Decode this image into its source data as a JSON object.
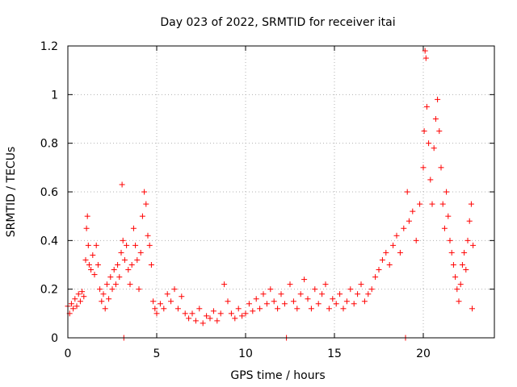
{
  "chart_data": {
    "type": "scatter",
    "title": "Day 023 of 2022, SRMTID for receiver itai",
    "xlabel": "GPS time / hours",
    "ylabel": "SRMTID / TECUs",
    "xlim": [
      0,
      24.0
    ],
    "ylim": [
      0,
      1.2
    ],
    "xticks": [
      0,
      5,
      10,
      15,
      20
    ],
    "xtick_labels": [
      "0",
      "5",
      "10",
      "15",
      "20"
    ],
    "yticks": [
      0,
      0.2,
      0.4,
      0.6,
      0.8,
      1.0,
      1.2
    ],
    "ytick_labels": [
      "0",
      "0.2",
      "0.4",
      "0.6",
      "0.8",
      "1",
      "1.2"
    ],
    "grid": true,
    "marker": "+",
    "color": "#ff0000",
    "series": [
      {
        "name": "SRMTID",
        "points": [
          [
            0.0,
            0.13
          ],
          [
            0.1,
            0.1
          ],
          [
            0.2,
            0.14
          ],
          [
            0.3,
            0.12
          ],
          [
            0.4,
            0.16
          ],
          [
            0.5,
            0.13
          ],
          [
            0.6,
            0.18
          ],
          [
            0.7,
            0.15
          ],
          [
            0.8,
            0.19
          ],
          [
            0.9,
            0.17
          ],
          [
            1.0,
            0.32
          ],
          [
            1.05,
            0.45
          ],
          [
            1.1,
            0.5
          ],
          [
            1.15,
            0.38
          ],
          [
            1.2,
            0.3
          ],
          [
            1.3,
            0.28
          ],
          [
            1.4,
            0.34
          ],
          [
            1.5,
            0.26
          ],
          [
            1.6,
            0.38
          ],
          [
            1.7,
            0.3
          ],
          [
            1.8,
            0.2
          ],
          [
            1.9,
            0.15
          ],
          [
            2.0,
            0.18
          ],
          [
            2.1,
            0.12
          ],
          [
            2.2,
            0.22
          ],
          [
            2.3,
            0.16
          ],
          [
            2.4,
            0.25
          ],
          [
            2.5,
            0.2
          ],
          [
            2.6,
            0.28
          ],
          [
            2.7,
            0.22
          ],
          [
            2.8,
            0.3
          ],
          [
            2.9,
            0.25
          ],
          [
            3.0,
            0.35
          ],
          [
            3.05,
            0.63
          ],
          [
            3.1,
            0.4
          ],
          [
            3.15,
            0.0
          ],
          [
            3.2,
            0.32
          ],
          [
            3.3,
            0.38
          ],
          [
            3.4,
            0.28
          ],
          [
            3.5,
            0.22
          ],
          [
            3.6,
            0.3
          ],
          [
            3.7,
            0.45
          ],
          [
            3.8,
            0.38
          ],
          [
            3.9,
            0.32
          ],
          [
            4.0,
            0.2
          ],
          [
            4.1,
            0.35
          ],
          [
            4.2,
            0.5
          ],
          [
            4.3,
            0.6
          ],
          [
            4.4,
            0.55
          ],
          [
            4.5,
            0.42
          ],
          [
            4.6,
            0.38
          ],
          [
            4.7,
            0.3
          ],
          [
            4.8,
            0.15
          ],
          [
            4.9,
            0.12
          ],
          [
            5.0,
            0.1
          ],
          [
            5.2,
            0.14
          ],
          [
            5.4,
            0.12
          ],
          [
            5.6,
            0.18
          ],
          [
            5.8,
            0.15
          ],
          [
            6.0,
            0.2
          ],
          [
            6.2,
            0.12
          ],
          [
            6.4,
            0.17
          ],
          [
            6.6,
            0.1
          ],
          [
            6.8,
            0.08
          ],
          [
            7.0,
            0.1
          ],
          [
            7.2,
            0.07
          ],
          [
            7.4,
            0.12
          ],
          [
            7.6,
            0.06
          ],
          [
            7.8,
            0.09
          ],
          [
            8.0,
            0.08
          ],
          [
            8.2,
            0.11
          ],
          [
            8.4,
            0.07
          ],
          [
            8.6,
            0.1
          ],
          [
            8.8,
            0.22
          ],
          [
            9.0,
            0.15
          ],
          [
            9.2,
            0.1
          ],
          [
            9.4,
            0.08
          ],
          [
            9.6,
            0.12
          ],
          [
            9.8,
            0.09
          ],
          [
            10.0,
            0.1
          ],
          [
            10.2,
            0.14
          ],
          [
            10.4,
            0.11
          ],
          [
            10.6,
            0.16
          ],
          [
            10.8,
            0.12
          ],
          [
            11.0,
            0.18
          ],
          [
            11.2,
            0.14
          ],
          [
            11.4,
            0.2
          ],
          [
            11.6,
            0.15
          ],
          [
            11.8,
            0.12
          ],
          [
            12.0,
            0.18
          ],
          [
            12.2,
            0.14
          ],
          [
            12.3,
            0.0
          ],
          [
            12.5,
            0.22
          ],
          [
            12.7,
            0.15
          ],
          [
            12.9,
            0.12
          ],
          [
            13.1,
            0.18
          ],
          [
            13.3,
            0.24
          ],
          [
            13.5,
            0.16
          ],
          [
            13.7,
            0.12
          ],
          [
            13.9,
            0.2
          ],
          [
            14.1,
            0.14
          ],
          [
            14.3,
            0.18
          ],
          [
            14.5,
            0.22
          ],
          [
            14.7,
            0.12
          ],
          [
            14.9,
            0.16
          ],
          [
            15.1,
            0.14
          ],
          [
            15.3,
            0.18
          ],
          [
            15.5,
            0.12
          ],
          [
            15.7,
            0.15
          ],
          [
            15.9,
            0.2
          ],
          [
            16.1,
            0.14
          ],
          [
            16.3,
            0.18
          ],
          [
            16.5,
            0.22
          ],
          [
            16.7,
            0.15
          ],
          [
            16.9,
            0.18
          ],
          [
            17.1,
            0.2
          ],
          [
            17.3,
            0.25
          ],
          [
            17.5,
            0.28
          ],
          [
            17.7,
            0.32
          ],
          [
            17.9,
            0.35
          ],
          [
            18.1,
            0.3
          ],
          [
            18.3,
            0.38
          ],
          [
            18.5,
            0.42
          ],
          [
            18.7,
            0.35
          ],
          [
            18.9,
            0.45
          ],
          [
            19.0,
            0.0
          ],
          [
            19.1,
            0.6
          ],
          [
            19.2,
            0.48
          ],
          [
            19.4,
            0.52
          ],
          [
            19.6,
            0.4
          ],
          [
            19.8,
            0.55
          ],
          [
            20.0,
            0.7
          ],
          [
            20.05,
            0.85
          ],
          [
            20.1,
            1.18
          ],
          [
            20.15,
            1.15
          ],
          [
            20.2,
            0.95
          ],
          [
            20.3,
            0.8
          ],
          [
            20.4,
            0.65
          ],
          [
            20.5,
            0.55
          ],
          [
            20.6,
            0.78
          ],
          [
            20.7,
            0.9
          ],
          [
            20.8,
            0.98
          ],
          [
            20.9,
            0.85
          ],
          [
            21.0,
            0.7
          ],
          [
            21.1,
            0.55
          ],
          [
            21.2,
            0.45
          ],
          [
            21.3,
            0.6
          ],
          [
            21.4,
            0.5
          ],
          [
            21.5,
            0.4
          ],
          [
            21.6,
            0.35
          ],
          [
            21.7,
            0.3
          ],
          [
            21.8,
            0.25
          ],
          [
            21.9,
            0.2
          ],
          [
            22.0,
            0.15
          ],
          [
            22.1,
            0.22
          ],
          [
            22.2,
            0.3
          ],
          [
            22.3,
            0.35
          ],
          [
            22.4,
            0.28
          ],
          [
            22.5,
            0.4
          ],
          [
            22.6,
            0.48
          ],
          [
            22.7,
            0.55
          ],
          [
            22.75,
            0.12
          ],
          [
            22.8,
            0.38
          ]
        ]
      }
    ]
  }
}
